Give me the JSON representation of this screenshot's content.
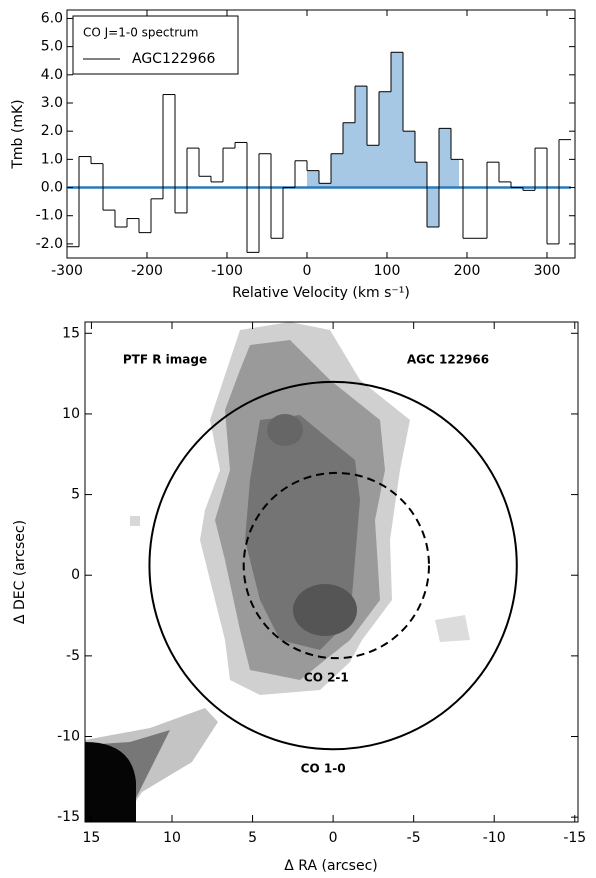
{
  "chart_data": [
    {
      "type": "step-histogram",
      "xlabel": "Relative Velocity (km s⁻¹)",
      "ylabel": "Tmb (mK)",
      "legend_title": "CO J=1-0 spectrum",
      "series": [
        {
          "name": "AGC122966",
          "color": "#000000",
          "fill": "#a6c8e4",
          "baseline_color": "#2b7bba",
          "bins": [
            -300,
            -285,
            -270,
            -255,
            -240,
            -225,
            -210,
            -195,
            -180,
            -165,
            -150,
            -135,
            -120,
            -105,
            -90,
            -75,
            -60,
            -45,
            -30,
            -15,
            0,
            15,
            30,
            45,
            60,
            75,
            90,
            105,
            120,
            135,
            150,
            165,
            180,
            195,
            210,
            225,
            240,
            255,
            270,
            285,
            300,
            315,
            330
          ],
          "values": [
            -2.1,
            1.1,
            0.85,
            -0.8,
            -1.4,
            -1.1,
            -1.6,
            -0.4,
            3.3,
            -0.9,
            1.4,
            0.4,
            0.2,
            1.4,
            1.6,
            -2.3,
            1.2,
            -1.8,
            0.0,
            0.95,
            0.6,
            0.15,
            1.2,
            2.3,
            3.6,
            1.5,
            3.4,
            4.8,
            2.0,
            0.9,
            -1.4,
            2.1,
            1.0,
            -1.8,
            -1.8,
            0.9,
            0.2,
            0.0,
            -0.1,
            1.4,
            -2.0,
            1.7
          ]
        }
      ],
      "shaded_range": [
        0,
        190
      ],
      "xlim": [
        -300,
        335
      ],
      "ylim": [
        -2.5,
        6.3
      ],
      "xticks": [
        -300,
        -200,
        -100,
        0,
        100,
        200,
        300
      ],
      "yticks": [
        {
          "value": 6,
          "label": "6.0"
        },
        {
          "value": 5,
          "label": "5.0"
        },
        {
          "value": 4,
          "label": "4.0"
        },
        {
          "value": 3,
          "label": "3.0"
        },
        {
          "value": 2,
          "label": "2.0"
        },
        {
          "value": 1,
          "label": "1.0"
        },
        {
          "value": 0,
          "label": "0.0"
        },
        {
          "value": -1,
          "label": "-1.0"
        },
        {
          "value": -2,
          "label": "-2.0"
        }
      ]
    },
    {
      "type": "image",
      "xlabel": "Δ RA (arcsec)",
      "ylabel": "Δ DEC (arcsec)",
      "annotations": [
        "PTF R image",
        "AGC 122966"
      ],
      "circles": [
        {
          "name": "CO 1-0",
          "center": [
            0,
            0.6
          ],
          "radius": 11.4,
          "dashed": false
        },
        {
          "name": "CO 2-1",
          "center": [
            -0.2,
            0.6
          ],
          "radius": 5.75,
          "dashed": true
        }
      ],
      "xlim": [
        15.4,
        -15.2
      ],
      "ylim": [
        -15.3,
        15.7
      ],
      "xticks": [
        15,
        10,
        5,
        0,
        -5,
        -10,
        -15
      ],
      "yticks": [
        15,
        10,
        5,
        0,
        -5,
        -10,
        -15
      ]
    }
  ]
}
